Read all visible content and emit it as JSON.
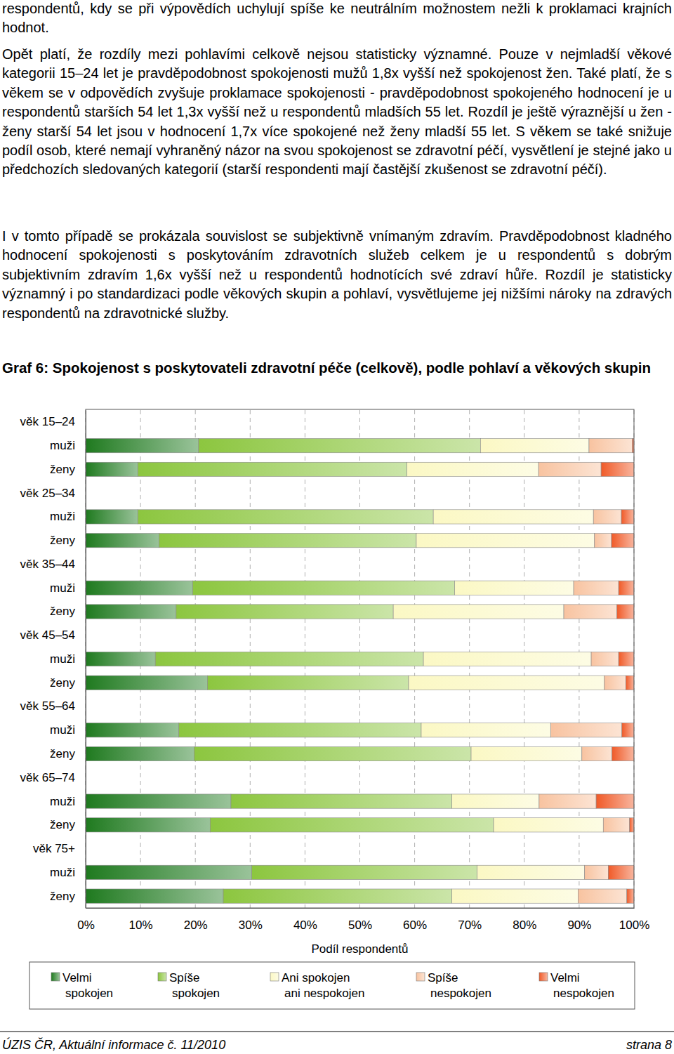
{
  "document": {
    "paragraphs": [
      "respondentů, kdy se při výpovědích uchylují spíše ke neutrálním možnostem nežli k proklamaci krajních hodnot.",
      "Opět platí, že rozdíly mezi pohlavími celkově nejsou statisticky významné. Pouze v nejmladší věkové kategorii 15–24 let je pravděpodobnost spokojenosti mužů 1,8x vyšší než spokojenost žen. Také platí, že s věkem se v odpovědích zvyšuje proklamace spokojenosti - pravděpodobnost spokojeného hodnocení je u respondentů starších 54 let 1,3x vyšší než u respondentů mladších 55 let. Rozdíl je ještě výraznější u žen - ženy starší 54 let jsou v hodnocení 1,7x více spokojené než ženy mladší 55 let. S věkem se také snižuje podíl osob, které nemají vyhraněný názor na svou spokojenost se zdravotní péčí, vysvětlení je stejné jako u předchozích sledovaných kategorií (starší respondenti mají častější zkušenost se zdravotní péčí).",
      "I v tomto případě se prokázala souvislost se subjektivně vnímaným zdravím. Pravděpodobnost kladného hodnocení spokojenosti s poskytováním zdravotních služeb celkem je u respondentů s dobrým subjektivním zdravím 1,6x vyšší než u respondentů hodnotících své zdraví hůře. Rozdíl je statisticky významný i po standardizaci podle věkových skupin a pohlaví, vysvětlujeme jej nižšími nároky na zdravých respondentů na zdravotnické služby."
    ],
    "footer": {
      "source": "ÚZIS ČR, Aktuální informace č. 11/2010",
      "page": "strana 8"
    }
  },
  "chart_data": {
    "type": "bar",
    "title": "Graf 6: Spokojenost s poskytovateli zdravotní péče (celkově), podle pohlaví a věkových skupin",
    "orientation": "horizontal",
    "stacked": true,
    "grid": true,
    "legend": "bottom",
    "xlabel": "Podíl respondentů",
    "xlim": [
      0,
      100
    ],
    "xticks": [
      {
        "value": 0,
        "label": "0%"
      },
      {
        "value": 10,
        "label": "10%"
      },
      {
        "value": 20,
        "label": "20%"
      },
      {
        "value": 30,
        "label": "30%"
      },
      {
        "value": 40,
        "label": "40%"
      },
      {
        "value": 50,
        "label": "50%"
      },
      {
        "value": 60,
        "label": "60%"
      },
      {
        "value": 70,
        "label": "70%"
      },
      {
        "value": 80,
        "label": "80%"
      },
      {
        "value": 90,
        "label": "90%"
      },
      {
        "value": 100,
        "label": "100%"
      }
    ],
    "categories": [
      "věk 15–24",
      "muži",
      "ženy",
      "věk 25–34",
      "muži",
      "ženy",
      "věk 35–44",
      "muži",
      "ženy",
      "věk 45–54",
      "muži",
      "ženy",
      "věk 55–64",
      "muži",
      "ženy",
      "věk 65–74",
      "muži",
      "ženy",
      "věk 75+",
      "muži",
      "ženy"
    ],
    "series": [
      {
        "name": "Velmi spokojen",
        "color": "#1f7a1f",
        "values": [
          null,
          20.6,
          9.5,
          null,
          9.5,
          13.4,
          null,
          19.5,
          16.5,
          null,
          12.7,
          22.2,
          null,
          17.0,
          19.8,
          null,
          26.5,
          22.7,
          null,
          30.3,
          25.1
        ]
      },
      {
        "name": "Spíše spokojen",
        "color": "#8cc63f",
        "values": [
          null,
          51.4,
          49.1,
          null,
          53.9,
          46.9,
          null,
          47.8,
          39.6,
          null,
          48.9,
          36.7,
          null,
          44.2,
          50.5,
          null,
          40.3,
          51.7,
          null,
          41.1,
          41.7
        ]
      },
      {
        "name": "Ani spokojen ani nespokojen",
        "color": "#fbf8c4",
        "values": [
          null,
          19.8,
          24.0,
          null,
          29.2,
          32.5,
          null,
          21.7,
          31.1,
          null,
          30.6,
          35.7,
          null,
          23.6,
          20.2,
          null,
          15.9,
          20.0,
          null,
          19.6,
          23.0
        ]
      },
      {
        "name": "Spíše nespokojen",
        "color": "#f8c3a0",
        "values": [
          null,
          7.9,
          11.4,
          null,
          5.1,
          3.1,
          null,
          8.2,
          9.7,
          null,
          5.0,
          3.9,
          null,
          13.0,
          5.5,
          null,
          10.4,
          4.8,
          null,
          4.3,
          8.9
        ]
      },
      {
        "name": "Velmi nespokojen",
        "color": "#f05a28",
        "values": [
          null,
          0.3,
          6.0,
          null,
          2.3,
          4.1,
          null,
          2.8,
          3.1,
          null,
          2.8,
          1.5,
          null,
          2.2,
          4.0,
          null,
          6.9,
          0.8,
          null,
          4.7,
          1.3
        ]
      }
    ]
  }
}
